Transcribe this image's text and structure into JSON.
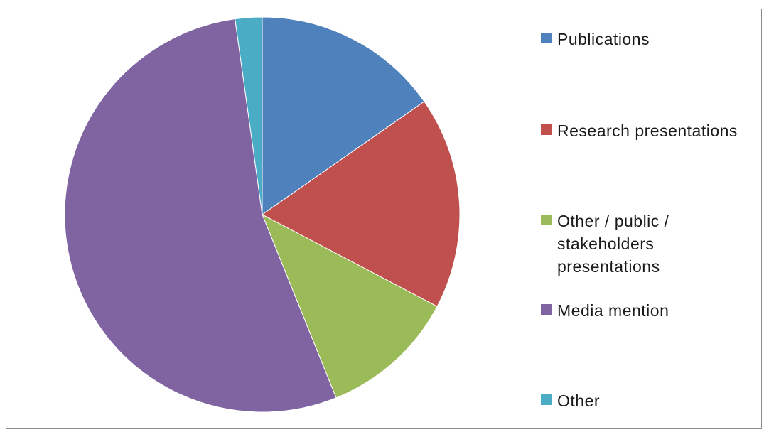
{
  "chart_data": {
    "type": "pie",
    "title": "",
    "start_angle_deg": 0,
    "direction": "clockwise",
    "legend_position": "right",
    "series": [
      {
        "name": "",
        "slices": [
          {
            "label": "Publications",
            "value": 15.3,
            "color": "#4F81BD"
          },
          {
            "label": "Research presentations",
            "value": 17.4,
            "color": "#C0504D"
          },
          {
            "label": "Other / public / stakeholders presentations",
            "value": 11.2,
            "color": "#9BBB59"
          },
          {
            "label": "Media mention",
            "value": 53.9,
            "color": "#8064A2"
          },
          {
            "label": "Other",
            "value": 2.2,
            "color": "#4BACC6"
          }
        ]
      }
    ]
  }
}
